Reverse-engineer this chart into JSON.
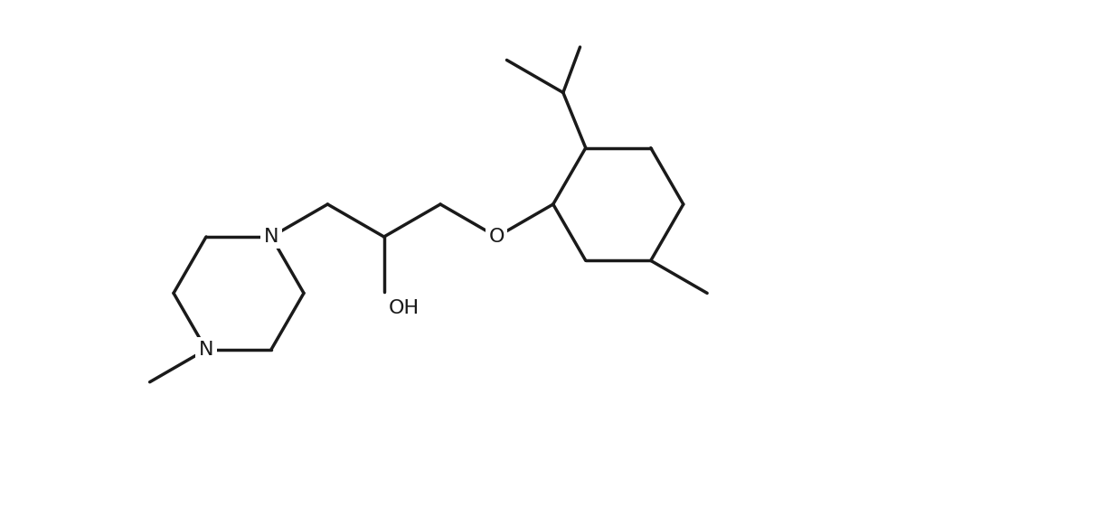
{
  "background_color": "#ffffff",
  "line_color": "#1a1a1a",
  "line_width": 2.5,
  "font_size": 16,
  "figsize": [
    12.1,
    5.82
  ],
  "dpi": 100,
  "xlim": [
    0,
    12.1
  ],
  "ylim": [
    0,
    5.82
  ]
}
